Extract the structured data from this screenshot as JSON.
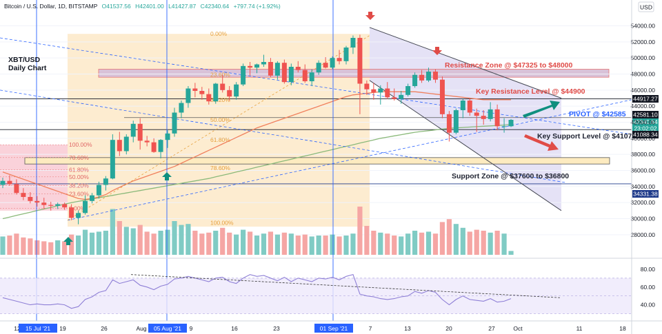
{
  "header": {
    "symbol": "Bitcoin / U.S. Dollar, 1D, BITSTAMP",
    "open": "O41537.56",
    "high": "H42401.00",
    "low": "L41427.87",
    "close": "C42340.64",
    "change": "+797.74 (+1.92%)"
  },
  "chart_label": {
    "line1": "XBT/USD",
    "line2": "Daily Chart"
  },
  "currency": "USD",
  "annotations": {
    "resistance_zone": "Resistance Zone @ $47325 to $48000",
    "key_resistance": "Key Resistance Level @ $44900",
    "pivot": "PIVOT @ $42585",
    "key_support": "Key Support Level @ $41075",
    "support_zone": "Support Zone @ $37600 to $36800"
  },
  "price_tags": {
    "p44917": "44917.27",
    "p42581": "42581.10",
    "current": "42340.64",
    "countdown": "23:02:02",
    "p41088": "41088.34",
    "p34331": "34331.38"
  },
  "fib_left": [
    "100.00%",
    "78.60%",
    "61.80%",
    "50.00%",
    "38.20%",
    "23.60%",
    "0.00%"
  ],
  "fib_right": [
    "0.00%",
    "23.60%",
    "38.20%",
    "50.00%",
    "61.80%",
    "78.60%",
    "100.00%"
  ],
  "x_labels": [
    "12",
    "15 Jul '21",
    "19",
    "26",
    "Aug",
    "05 Aug '21",
    "9",
    "16",
    "23",
    "01 Sep '21",
    "7",
    "13",
    "20",
    "27",
    "Oct",
    "11",
    "18"
  ],
  "colors": {
    "up": "#26a69a",
    "down": "#ef5350",
    "vol_up": "#80cbc4",
    "vol_down": "#f5a6a4",
    "fib_zone": "#fde9c8",
    "pink_zone": "#f9c7d1",
    "channel": "#e1ddf4",
    "blue_line": "#2962ff",
    "ema_red": "#f0805d",
    "ema_green": "#8ab97a",
    "rsi": "#8e7fd6",
    "label_dark": "#1e2230",
    "label_blue": "#2962ff",
    "arrow_teal": "#108f7f",
    "arrow_red": "#e04b47"
  },
  "chart_data": {
    "type": "candlestick",
    "title": "Bitcoin / U.S. Dollar, 1D, BITSTAMP",
    "ylim": [
      25500,
      55500
    ],
    "yticks": [
      28000,
      30000,
      32000,
      34000,
      36000,
      38000,
      40000,
      42000,
      44000,
      46000,
      48000,
      50000,
      52000,
      54000
    ],
    "rsi_ticks": [
      40,
      60,
      80
    ],
    "candles": [
      [
        34200,
        35100,
        33800,
        34700
      ],
      [
        34700,
        35400,
        34100,
        34300
      ],
      [
        34300,
        34900,
        33000,
        33200
      ],
      [
        33200,
        33800,
        32300,
        32700
      ],
      [
        32700,
        33300,
        31900,
        32200
      ],
      [
        32200,
        32800,
        31500,
        32000
      ],
      [
        32000,
        32600,
        31200,
        31700
      ],
      [
        31700,
        32100,
        31000,
        31600
      ],
      [
        31600,
        32000,
        31200,
        31800
      ],
      [
        31800,
        32000,
        31100,
        31400
      ],
      [
        31400,
        31800,
        29800,
        30100
      ],
      [
        30100,
        31000,
        29300,
        30700
      ],
      [
        30700,
        32900,
        30500,
        32200
      ],
      [
        32200,
        33200,
        31900,
        32900
      ],
      [
        32900,
        34600,
        32500,
        34200
      ],
      [
        34200,
        35300,
        33500,
        35000
      ],
      [
        35000,
        40500,
        34900,
        39800
      ],
      [
        39800,
        40800,
        37800,
        38400
      ],
      [
        38400,
        40500,
        38000,
        40200
      ],
      [
        40200,
        42200,
        39500,
        41800
      ],
      [
        41800,
        42500,
        38600,
        39700
      ],
      [
        39700,
        40300,
        39000,
        39500
      ],
      [
        39500,
        40000,
        38200,
        38300
      ],
      [
        38300,
        39900,
        37500,
        39800
      ],
      [
        39800,
        41000,
        38800,
        40600
      ],
      [
        40600,
        43800,
        40200,
        43200
      ],
      [
        43200,
        44700,
        42500,
        44400
      ],
      [
        44400,
        46500,
        43800,
        46200
      ],
      [
        46200,
        46900,
        45100,
        45900
      ],
      [
        45900,
        46400,
        44800,
        45500
      ],
      [
        45500,
        46200,
        44200,
        44600
      ],
      [
        44600,
        46900,
        44300,
        46800
      ],
      [
        46800,
        47900,
        45700,
        46000
      ],
      [
        46000,
        46500,
        44700,
        45200
      ],
      [
        45200,
        47000,
        44800,
        46700
      ],
      [
        46700,
        49300,
        46500,
        49000
      ],
      [
        49000,
        49500,
        47800,
        48800
      ],
      [
        48800,
        49300,
        48100,
        49200
      ],
      [
        49200,
        50400,
        48900,
        49500
      ],
      [
        49500,
        50000,
        47600,
        47800
      ],
      [
        47800,
        49600,
        47300,
        49400
      ],
      [
        49400,
        49800,
        46800,
        47000
      ],
      [
        47000,
        49300,
        46600,
        48900
      ],
      [
        48900,
        49600,
        48200,
        48500
      ],
      [
        48500,
        49200,
        46900,
        47100
      ],
      [
        47100,
        48600,
        46500,
        48200
      ],
      [
        48200,
        49700,
        47900,
        49400
      ],
      [
        49400,
        50100,
        48700,
        48800
      ],
      [
        48800,
        50200,
        48600,
        50000
      ],
      [
        50000,
        51000,
        49200,
        49600
      ],
      [
        49600,
        51500,
        49200,
        51300
      ],
      [
        51300,
        52800,
        50500,
        52500
      ],
      [
        52500,
        52900,
        43000,
        46800
      ],
      [
        46800,
        47200,
        45400,
        46100
      ],
      [
        46100,
        46900,
        44800,
        45700
      ],
      [
        45700,
        46600,
        44200,
        46200
      ],
      [
        46200,
        47000,
        44900,
        45100
      ],
      [
        45100,
        46200,
        44700,
        44900
      ],
      [
        44900,
        45900,
        44300,
        45400
      ],
      [
        45400,
        46800,
        45200,
        46500
      ],
      [
        46500,
        48200,
        46300,
        47900
      ],
      [
        47900,
        48500,
        46900,
        47200
      ],
      [
        47200,
        48800,
        47000,
        48300
      ],
      [
        48300,
        48600,
        46900,
        47300
      ],
      [
        47300,
        47700,
        42500,
        43000
      ],
      [
        43000,
        43400,
        39600,
        40700
      ],
      [
        40700,
        43700,
        40500,
        43500
      ],
      [
        43500,
        44900,
        42500,
        44700
      ],
      [
        44700,
        45000,
        42800,
        43200
      ],
      [
        43200,
        43700,
        40800,
        42800
      ],
      [
        42800,
        43500,
        41700,
        42400
      ],
      [
        42400,
        44500,
        42100,
        43600
      ],
      [
        43600,
        44200,
        41000,
        41500
      ],
      [
        41500,
        42500,
        40700,
        41500
      ],
      [
        41500,
        42400,
        41400,
        42300
      ]
    ],
    "volume": [
      38,
      40,
      44,
      36,
      34,
      30,
      28,
      26,
      30,
      28,
      42,
      40,
      52,
      46,
      48,
      50,
      95,
      70,
      58,
      55,
      62,
      48,
      44,
      50,
      52,
      70,
      62,
      64,
      50,
      44,
      46,
      50,
      56,
      46,
      42,
      52,
      48,
      40,
      44,
      48,
      42,
      46,
      44,
      40,
      42,
      38,
      40,
      40,
      42,
      38,
      40,
      44,
      100,
      60,
      50,
      46,
      44,
      40,
      38,
      44,
      50,
      46,
      48,
      44,
      68,
      74,
      64,
      56,
      48,
      52,
      50,
      46,
      50,
      44,
      8
    ],
    "rsi": [
      48,
      46,
      44,
      42,
      40,
      41,
      40,
      40,
      41,
      40,
      36,
      38,
      46,
      49,
      54,
      56,
      68,
      64,
      66,
      68,
      62,
      60,
      57,
      61,
      63,
      69,
      70,
      72,
      70,
      68,
      66,
      70,
      71,
      66,
      64,
      70,
      74,
      72,
      73,
      70,
      67,
      71,
      66,
      70,
      68,
      66,
      70,
      69,
      71,
      68,
      72,
      74,
      52,
      50,
      49,
      47,
      46,
      47,
      49,
      50,
      55,
      53,
      56,
      54,
      46,
      40,
      46,
      50,
      46,
      45,
      44,
      47,
      43,
      44,
      47
    ],
    "ema_long": [
      30000,
      30200,
      30400,
      30600,
      30800,
      31000,
      31200,
      31400,
      31600,
      31800,
      32000,
      32150,
      32300,
      32450,
      32600,
      32750,
      32900,
      33050,
      33200,
      33350,
      33500,
      33650,
      33800,
      33950,
      34100,
      34250,
      34400,
      34550,
      34700,
      34850,
      35000,
      35200,
      35400,
      35600,
      35800,
      36000,
      36200,
      36400,
      36600,
      36800,
      37000,
      37200,
      37400,
      37600,
      37800,
      38000,
      38200,
      38400,
      38600,
      38800,
      39000,
      39200,
      39400,
      39600,
      39800,
      40000,
      40150,
      40300,
      40450,
      40600,
      40750,
      40850,
      40950,
      41050,
      41150,
      41250,
      41300,
      41350,
      41400,
      41450,
      41500,
      41550,
      41600,
      41650,
      41700
    ],
    "ema_mid": [
      35800,
      35500,
      35200,
      34900,
      34600,
      34300,
      34000,
      33700,
      33400,
      33100,
      32800,
      32500,
      32400,
      32500,
      32700,
      33000,
      33500,
      33900,
      34300,
      34700,
      35000,
      35300,
      35600,
      35900,
      36200,
      36500,
      36900,
      37300,
      37700,
      38100,
      38500,
      38900,
      39300,
      39700,
      40100,
      40500,
      40900,
      41300,
      41600,
      41900,
      42200,
      42500,
      42800,
      43100,
      43400,
      43700,
      44000,
      44300,
      44600,
      44900,
      45200,
      45400,
      45500,
      45600,
      45700,
      45800,
      45800,
      45800,
      45800,
      45800,
      45800,
      45700,
      45600,
      45500,
      45400,
      45300,
      45200,
      45100,
      45000,
      44900,
      44800,
      44800,
      44800,
      44800,
      44800
    ]
  }
}
